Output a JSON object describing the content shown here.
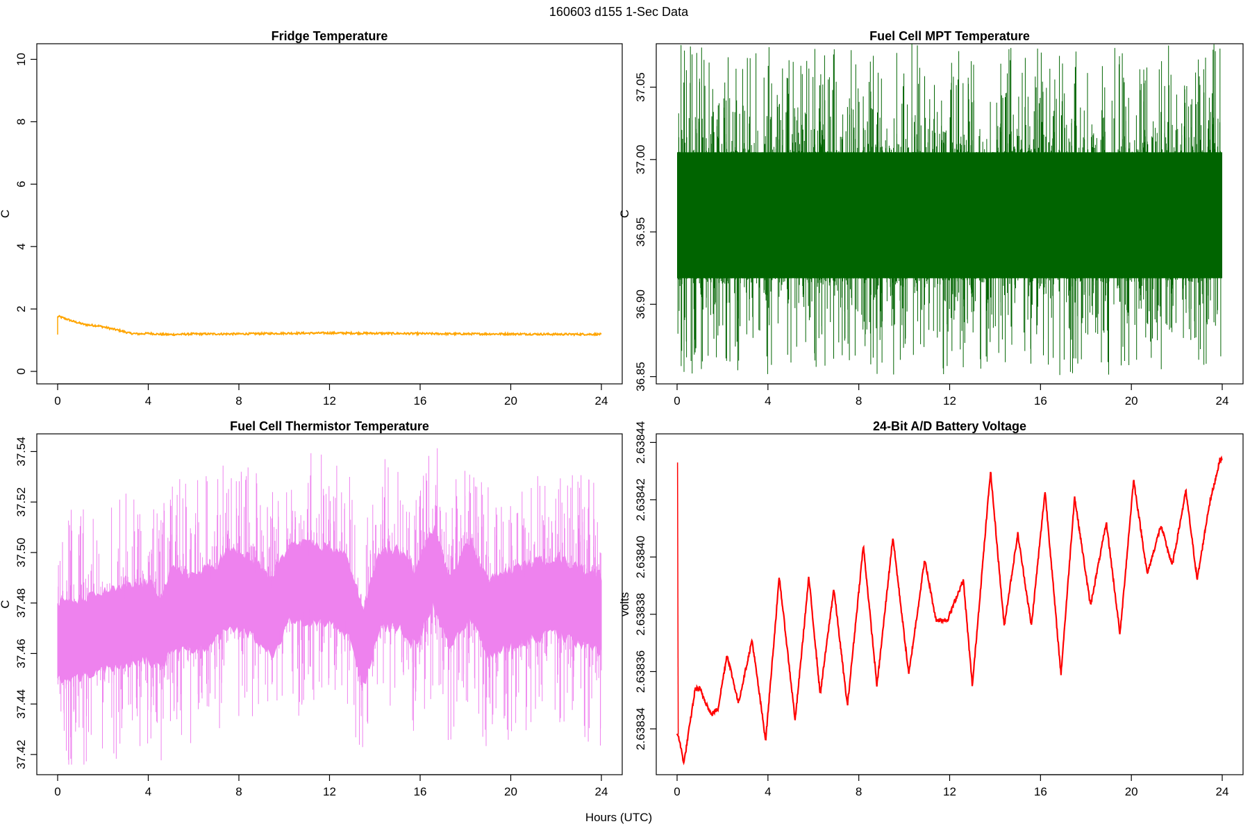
{
  "figure": {
    "title": "160603   d155   1-Sec Data",
    "xlabel": "Hours (UTC)"
  },
  "chart_data": [
    {
      "type": "line",
      "title": "Fridge Temperature",
      "ylabel": "C",
      "color": "#ffa500",
      "xlim": [
        0,
        24
      ],
      "ylim": [
        -0.4,
        10.5
      ],
      "xticks": [
        0,
        4,
        8,
        12,
        16,
        20,
        24
      ],
      "xtick_labels": [
        "0",
        "4",
        "8",
        "12",
        "16",
        "20",
        "24"
      ],
      "yticks": [
        0,
        2,
        4,
        6,
        8,
        10
      ],
      "ytick_labels": [
        "0",
        "2",
        "4",
        "6",
        "8",
        "10"
      ],
      "x": [
        0,
        0.05,
        0.3,
        0.7,
        1.2,
        1.8,
        2.3,
        2.8,
        3.2,
        3.6,
        4.0,
        4.5,
        5.0,
        6.0,
        8.0,
        10.0,
        12.0,
        14.0,
        16.0,
        18.0,
        20.0,
        22.0,
        24.0
      ],
      "y": [
        1.76,
        1.76,
        1.7,
        1.6,
        1.5,
        1.46,
        1.38,
        1.3,
        1.22,
        1.2,
        1.22,
        1.19,
        1.18,
        1.2,
        1.2,
        1.22,
        1.23,
        1.22,
        1.21,
        1.2,
        1.2,
        1.19,
        1.19
      ],
      "noise_band": 0.03,
      "initial_spike": [
        1.18,
        1.76
      ]
    },
    {
      "type": "line",
      "title": "Fuel Cell MPT Temperature",
      "ylabel": "C",
      "color": "#006400",
      "xlim": [
        0,
        24
      ],
      "ylim": [
        36.845,
        37.08
      ],
      "xticks": [
        0,
        4,
        8,
        12,
        16,
        20,
        24
      ],
      "xtick_labels": [
        "0",
        "4",
        "8",
        "12",
        "16",
        "20",
        "24"
      ],
      "yticks": [
        36.85,
        36.9,
        36.95,
        37.0,
        37.05
      ],
      "ytick_labels": [
        "36.85",
        "36.90",
        "36.95",
        "37.00",
        "37.05"
      ],
      "x": [
        0,
        4,
        8,
        12,
        16,
        20,
        24
      ],
      "y": [
        36.96,
        36.96,
        36.96,
        36.96,
        36.96,
        36.96,
        36.96
      ],
      "dense_band": [
        36.918,
        37.005
      ],
      "extremes": [
        36.851,
        37.08
      ]
    },
    {
      "type": "line",
      "title": "Fuel Cell Thermistor Temperature",
      "ylabel": "C",
      "color": "#ee82ee",
      "xlim": [
        0,
        24
      ],
      "ylim": [
        37.412,
        37.547
      ],
      "xticks": [
        0,
        4,
        8,
        12,
        16,
        20,
        24
      ],
      "xtick_labels": [
        "0",
        "4",
        "8",
        "12",
        "16",
        "20",
        "24"
      ],
      "yticks": [
        37.42,
        37.44,
        37.46,
        37.48,
        37.5,
        37.52,
        37.54
      ],
      "ytick_labels": [
        "37.42",
        "37.44",
        "37.46",
        "37.48",
        "37.50",
        "37.52",
        "37.54"
      ],
      "x": [
        0,
        1,
        2,
        3,
        4,
        4.6,
        5,
        6,
        7,
        7.5,
        8.5,
        9.5,
        10.2,
        11,
        12,
        12.8,
        13.5,
        14.2,
        15,
        15.8,
        16.6,
        17.3,
        18.2,
        19,
        20,
        21,
        22,
        23,
        24
      ],
      "y": [
        37.465,
        37.466,
        37.469,
        37.471,
        37.473,
        37.468,
        37.478,
        37.476,
        37.48,
        37.486,
        37.483,
        37.474,
        37.488,
        37.488,
        37.487,
        37.483,
        37.462,
        37.485,
        37.486,
        37.478,
        37.495,
        37.476,
        37.49,
        37.474,
        37.478,
        37.481,
        37.483,
        37.479,
        37.476
      ],
      "band_halfwidth": 0.015,
      "extremes": [
        37.416,
        37.544
      ]
    },
    {
      "type": "line",
      "title": "24-Bit A/D Battery Voltage",
      "ylabel": "volts",
      "color": "#ff0000",
      "xlim": [
        0,
        24
      ],
      "ylim": [
        2.638324,
        2.638443
      ],
      "xticks": [
        0,
        4,
        8,
        12,
        16,
        20,
        24
      ],
      "xtick_labels": [
        "0",
        "4",
        "8",
        "12",
        "16",
        "20",
        "24"
      ],
      "yticks": [
        2.63834,
        2.63836,
        2.63838,
        2.6384,
        2.63842,
        2.63844
      ],
      "ytick_labels": [
        "2.63834",
        "2.63836",
        "2.63838",
        "2.63840",
        "2.63842",
        "2.63844"
      ],
      "x": [
        0.02,
        0.05,
        0.3,
        0.8,
        1.0,
        1.5,
        1.8,
        2.2,
        2.7,
        3.3,
        3.9,
        4.5,
        5.2,
        5.8,
        6.3,
        6.9,
        7.5,
        8.2,
        8.8,
        9.5,
        10.2,
        10.9,
        11.4,
        11.9,
        12.6,
        13.0,
        13.8,
        14.4,
        15.0,
        15.6,
        16.2,
        16.9,
        17.5,
        18.2,
        18.9,
        19.5,
        20.1,
        20.7,
        21.3,
        21.8,
        22.4,
        22.9,
        23.4,
        23.9
      ],
      "y": [
        2.638433,
        2.638338,
        2.638328,
        2.638354,
        2.638354,
        2.638345,
        2.638347,
        2.638366,
        2.638349,
        2.638371,
        2.638336,
        2.638393,
        2.638343,
        2.638393,
        2.638352,
        2.638389,
        2.638348,
        2.638404,
        2.638355,
        2.638407,
        2.638359,
        2.638399,
        2.638378,
        2.638378,
        2.638392,
        2.638355,
        2.63843,
        2.638376,
        2.638408,
        2.638376,
        2.638423,
        2.638359,
        2.638421,
        2.638383,
        2.638412,
        2.638373,
        2.638427,
        2.638394,
        2.638411,
        2.638397,
        2.638423,
        2.638392,
        2.638417,
        2.638434
      ],
      "noise_band": 8e-07
    }
  ]
}
